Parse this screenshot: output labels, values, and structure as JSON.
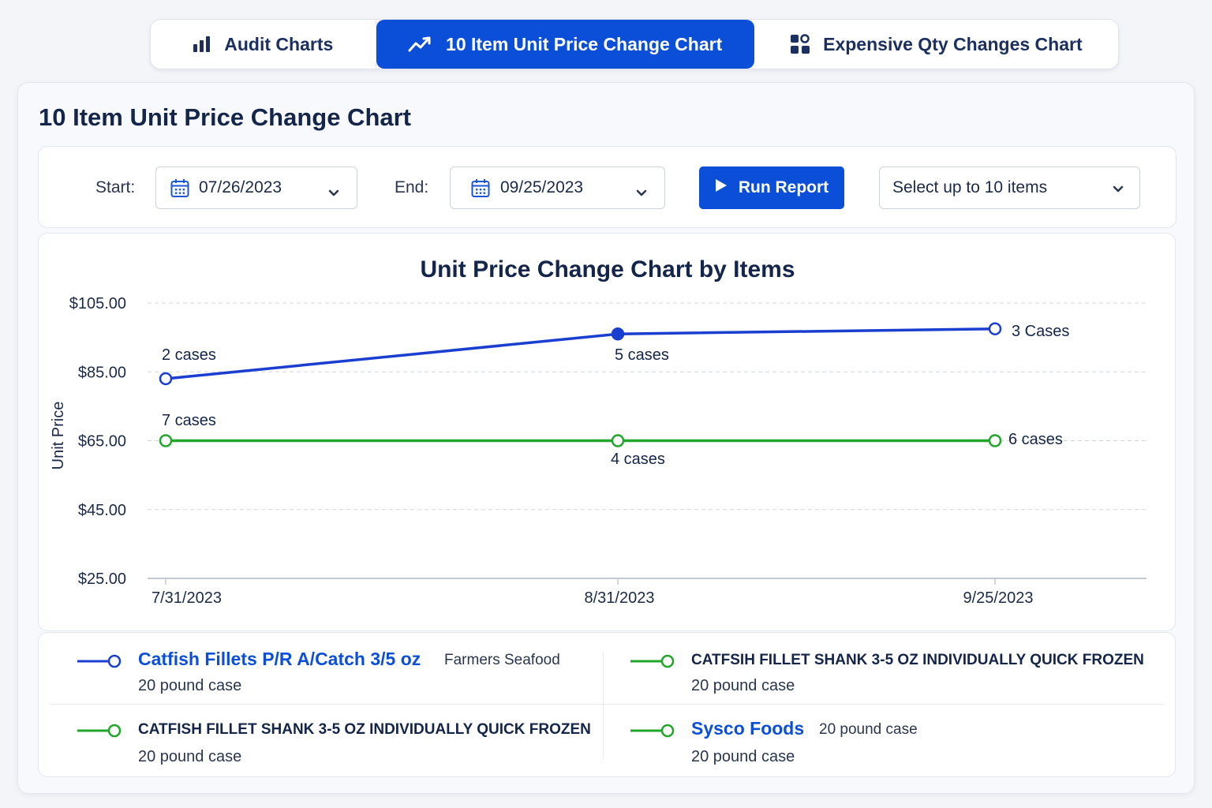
{
  "tabs": [
    {
      "label": "Audit Charts",
      "icon": "bar-chart-icon",
      "active": false
    },
    {
      "label": "10 Item Unit Price Change Chart",
      "icon": "trend-line-icon",
      "active": true
    },
    {
      "label": "Expensive Qty Changes Chart",
      "icon": "dashboard-icon",
      "active": false
    }
  ],
  "page": {
    "title": "10 Item Unit Price Change Chart"
  },
  "filters": {
    "start_label": "Start:",
    "start_value": "07/26/2023",
    "end_label": "End:",
    "end_value": "09/25/2023",
    "run_label": "Run Report",
    "items_placeholder": "Select up to 10 items"
  },
  "colors": {
    "accent": "#0b4fd9",
    "series_blue": "#1a3fd0",
    "series_green": "#21a52a"
  },
  "chart_data": {
    "type": "line",
    "title": "Unit Price Change Chart by Items",
    "ylabel": "Unit Price",
    "xlabel": "",
    "ylim": [
      25,
      105
    ],
    "yticks": [
      "$105.00",
      "$85.00",
      "$65.00",
      "$45.00",
      "$25.00"
    ],
    "ytick_values": [
      105,
      85,
      65,
      45,
      25
    ],
    "categories": [
      "7/31/2023",
      "8/31/2023",
      "9/25/2023"
    ],
    "grid": true,
    "series": [
      {
        "color": "#1a3fd0",
        "values": [
          83,
          96,
          97.5
        ],
        "labels": [
          "2 cases",
          "5 cases",
          "3 Cases"
        ],
        "filled": [
          false,
          true,
          false
        ]
      },
      {
        "color": "#21a52a",
        "values": [
          65,
          65,
          65
        ],
        "labels": [
          "7 cases",
          "4 cases",
          "6 cases"
        ],
        "filled": [
          false,
          false,
          false
        ]
      }
    ]
  },
  "legend": [
    {
      "name": "Catfish Fillets P/R A/Catch 3/5 oz",
      "vendor": "Farmers Seafood",
      "size": "20 pound case",
      "color": "#1a3fd0"
    },
    {
      "name": "CATFSIH FILLET SHANK 3-5 OZ INDIVIDUALLY QUICK FROZEN",
      "vendor": "",
      "size": "20 pound case",
      "color": "#21a52a"
    },
    {
      "name": "CATFISH FILLET SHANK 3-5 OZ INDIVIDUALLY QUICK FROZEN",
      "vendor": "",
      "size": "20 pound case",
      "color": "#21a52a"
    },
    {
      "name": "Sysco Foods",
      "vendor": "20 pound case",
      "size": "20 pound case",
      "color": "#21a52a"
    }
  ]
}
